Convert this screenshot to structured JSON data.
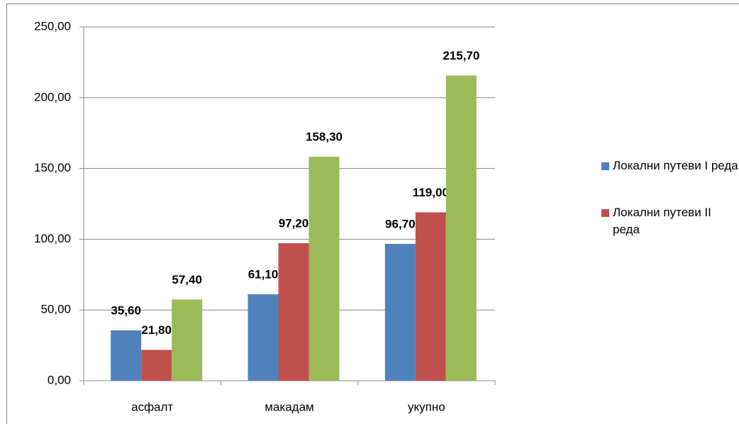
{
  "chart_data": {
    "type": "bar",
    "categories": [
      "асфалт",
      "макадам",
      "укупно"
    ],
    "series": [
      {
        "name": "Локални путеви I реда",
        "color": "#4f81bd",
        "values": [
          35.6,
          61.1,
          96.7
        ],
        "value_labels": [
          "35,60",
          "61,10",
          "96,70"
        ]
      },
      {
        "name": "Локални путеви II реда",
        "color": "#c0504d",
        "values": [
          21.8,
          97.2,
          119.0
        ],
        "value_labels": [
          "21,80",
          "97,20",
          "119,00"
        ]
      },
      {
        "color": "#9bbb59",
        "values": [
          57.4,
          158.3,
          215.7
        ],
        "value_labels": [
          "57,40",
          "158,30",
          "215,70"
        ]
      }
    ],
    "ylim": [
      0,
      250
    ],
    "yticks": [
      {
        "value": 0,
        "label": "0,00"
      },
      {
        "value": 50,
        "label": "50,00"
      },
      {
        "value": 100,
        "label": "100,00"
      },
      {
        "value": 150,
        "label": "150,00"
      },
      {
        "value": 200,
        "label": "200,00"
      },
      {
        "value": 250,
        "label": "250,00"
      }
    ],
    "grid": true
  }
}
